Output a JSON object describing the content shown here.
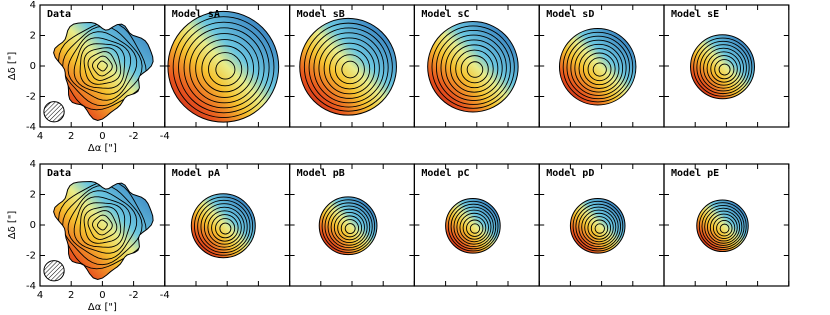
{
  "chart_data": [
    {
      "type": "map",
      "title": "Data",
      "title_color": "#1e1e70",
      "xlim": [
        4,
        -4
      ],
      "ylim": [
        -4,
        4
      ],
      "xticks": [
        4,
        2,
        0,
        -2,
        -4
      ],
      "yticks": [
        4,
        2,
        0,
        -2,
        -4
      ],
      "xlabel": "Δα [\"]",
      "ylabel": "Δδ [\"]"
    },
    {
      "type": "map",
      "title": "Model sA",
      "title_color": "#d42a2a"
    },
    {
      "type": "map",
      "title": "Model sB",
      "title_color": "#f4a52a"
    },
    {
      "type": "map",
      "title": "Model sC",
      "title_color": "#1aa05a"
    },
    {
      "type": "map",
      "title": "Model sD",
      "title_color": "#2a9ed8"
    },
    {
      "type": "map",
      "title": "Model sE",
      "title_color": "#2a2a8a"
    },
    {
      "type": "map",
      "title": "Data",
      "title_color": "#1e1e70",
      "xlim": [
        4,
        -4
      ],
      "ylim": [
        -4,
        4
      ],
      "xticks": [
        4,
        2,
        0,
        -2,
        -4
      ],
      "yticks": [
        4,
        2,
        0,
        -2,
        -4
      ],
      "xlabel": "Δα [\"]",
      "ylabel": "Δδ [\"]"
    },
    {
      "type": "map",
      "title": "Model pA",
      "title_color": "#d42a2a"
    },
    {
      "type": "map",
      "title": "Model pB",
      "title_color": "#f4a52a"
    },
    {
      "type": "map",
      "title": "Model pC",
      "title_color": "#1aa05a"
    },
    {
      "type": "map",
      "title": "Model pD",
      "title_color": "#2a9ed8"
    },
    {
      "type": "map",
      "title": "Model pE",
      "title_color": "#2a2a8a"
    }
  ]
}
